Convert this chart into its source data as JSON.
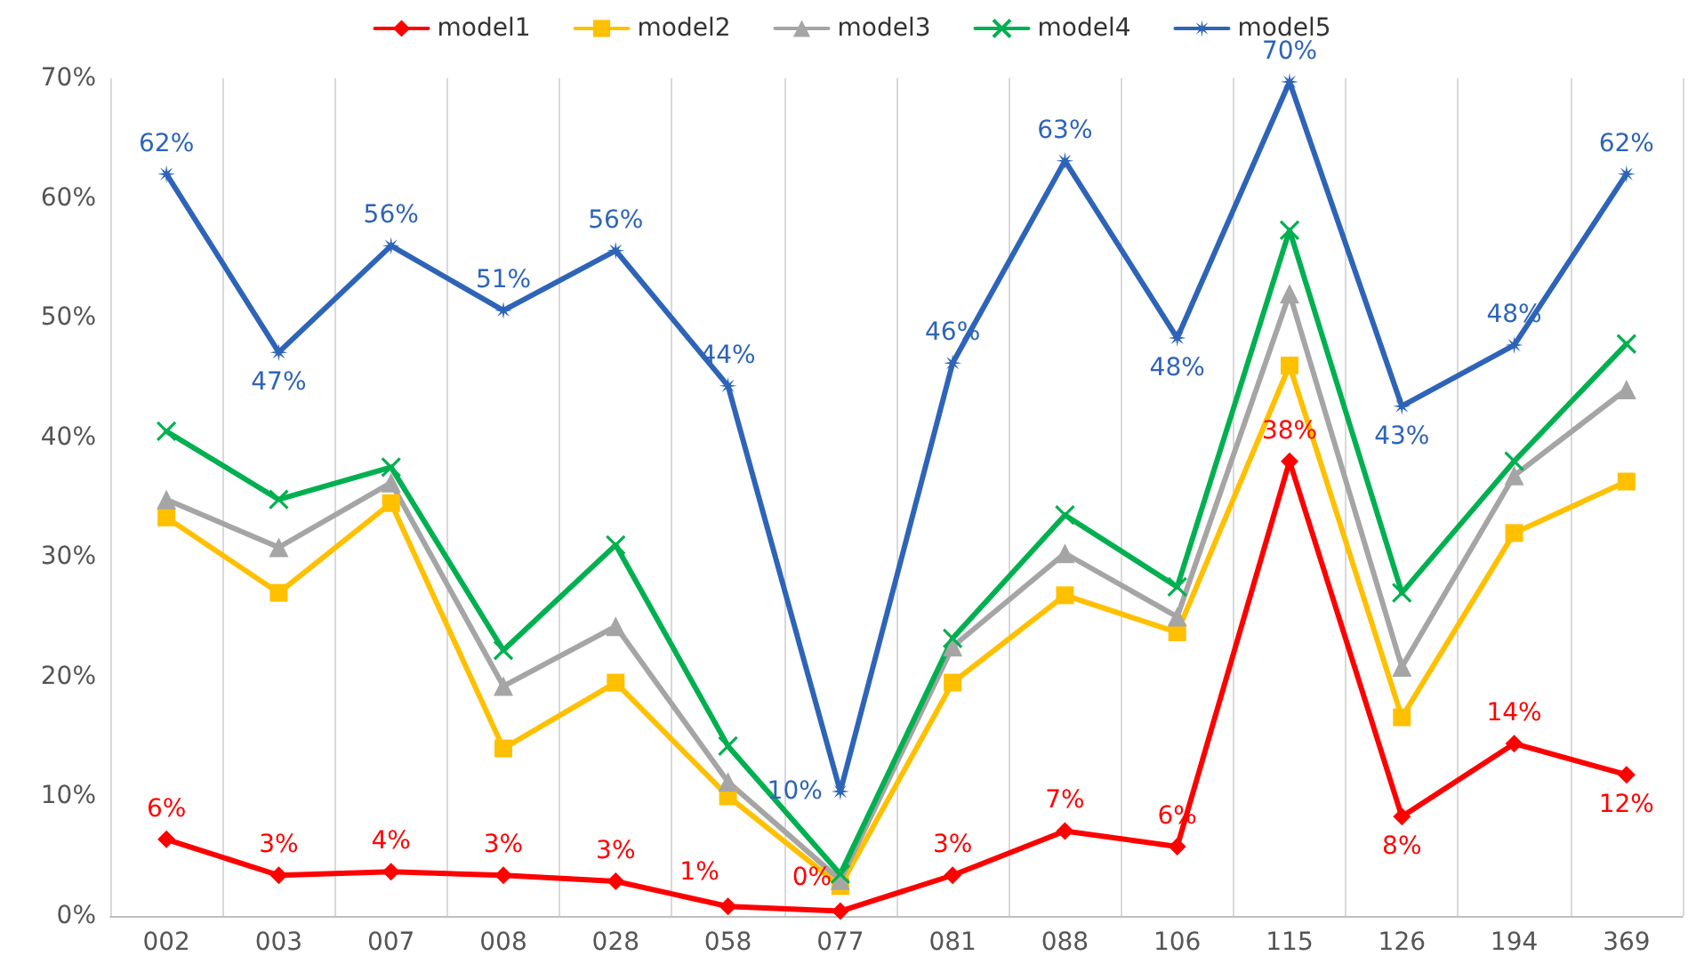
{
  "chart_data": {
    "type": "line",
    "categories": [
      "002",
      "003",
      "007",
      "008",
      "028",
      "058",
      "077",
      "081",
      "088",
      "106",
      "115",
      "126",
      "194",
      "369"
    ],
    "ylim": [
      0,
      70
    ],
    "yticks": [
      {
        "value": 0,
        "label": "0%"
      },
      {
        "value": 10,
        "label": "10%"
      },
      {
        "value": 20,
        "label": "20%"
      },
      {
        "value": 30,
        "label": "30%"
      },
      {
        "value": 40,
        "label": "40%"
      },
      {
        "value": 50,
        "label": "50%"
      },
      {
        "value": 60,
        "label": "60%"
      },
      {
        "value": 70,
        "label": "70%"
      }
    ],
    "grid": "x",
    "legend": "top",
    "series": [
      {
        "name": "model1",
        "color": "#ff0000",
        "marker": "diamond",
        "values": [
          6.4,
          3.4,
          3.7,
          3.4,
          2.9,
          0.8,
          0.4,
          3.4,
          7.1,
          5.8,
          38,
          8.3,
          14.4,
          11.8
        ],
        "value_labels": [
          "6%",
          "3%",
          "4%",
          "3%",
          "3%",
          "1%",
          "0%",
          "3%",
          "7%",
          "6%",
          "38%",
          "8%",
          "14%",
          "12%"
        ]
      },
      {
        "name": "model2",
        "color": "#ffc000",
        "marker": "square",
        "values": [
          33.3,
          27,
          34.5,
          14,
          19.5,
          10,
          2.5,
          19.5,
          26.8,
          23.7,
          46,
          16.6,
          32,
          36.3
        ]
      },
      {
        "name": "model3",
        "color": "#a5a5a5",
        "marker": "triangle",
        "values": [
          34.8,
          30.8,
          36.2,
          19.2,
          24.2,
          11.2,
          3,
          22.5,
          30.3,
          25,
          52,
          20.8,
          36.8,
          44
        ]
      },
      {
        "name": "model4",
        "color": "#00b050",
        "marker": "cross",
        "values": [
          40.5,
          34.8,
          37.5,
          22.2,
          31,
          14.2,
          3.5,
          23.2,
          33.5,
          27.5,
          57.3,
          27,
          38,
          47.8
        ]
      },
      {
        "name": "model5",
        "color": "#2e64b8",
        "marker": "star",
        "values": [
          62,
          47.1,
          56,
          50.6,
          55.6,
          44.3,
          10.4,
          46.2,
          63.1,
          48.3,
          69.7,
          42.6,
          47.7,
          62
        ],
        "value_labels": [
          "62%",
          "47%",
          "56%",
          "51%",
          "56%",
          "44%",
          "10%",
          "46%",
          "63%",
          "48%",
          "70%",
          "43%",
          "48%",
          "62%"
        ]
      }
    ]
  }
}
